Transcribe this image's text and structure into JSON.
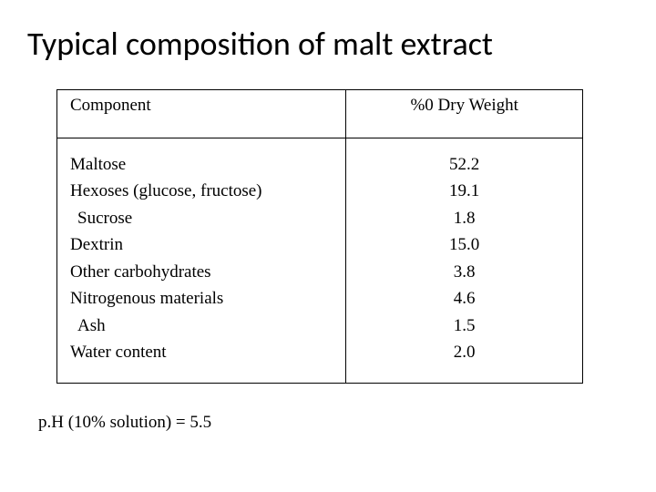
{
  "title": "Typical composition of malt extract",
  "table": {
    "columns": [
      "Component",
      "%0 Dry Weight"
    ],
    "rows": [
      {
        "label": "Maltose",
        "value": "52.2",
        "indent": 0
      },
      {
        "label": "Hexoses (glucose, fructose)",
        "value": "19.1",
        "indent": 0
      },
      {
        "label": "Sucrose",
        "value": "1.8",
        "indent": 1
      },
      {
        "label": "Dextrin",
        "value": "15.0",
        "indent": 0
      },
      {
        "label": "Other carbohydrates",
        "value": "3.8",
        "indent": 0
      },
      {
        "label": "Nitrogenous materials",
        "value": "4.6",
        "indent": 0
      },
      {
        "label": "Ash",
        "value": "1.5",
        "indent": 1
      },
      {
        "label": "Water content",
        "value": "2.0",
        "indent": 0
      }
    ],
    "border_color": "#000000",
    "font_family_serif": "Georgia, Times New Roman, serif",
    "font_size_body": 19,
    "col_widths_pct": [
      55,
      45
    ],
    "col_align": [
      "left",
      "center"
    ]
  },
  "footnote": "p.H (10% solution)  =  5.5",
  "colors": {
    "background": "#ffffff",
    "text": "#000000"
  },
  "typography": {
    "title_font": "Calibri, Segoe UI, Arial, sans-serif",
    "title_size": 36,
    "title_weight": 400
  }
}
